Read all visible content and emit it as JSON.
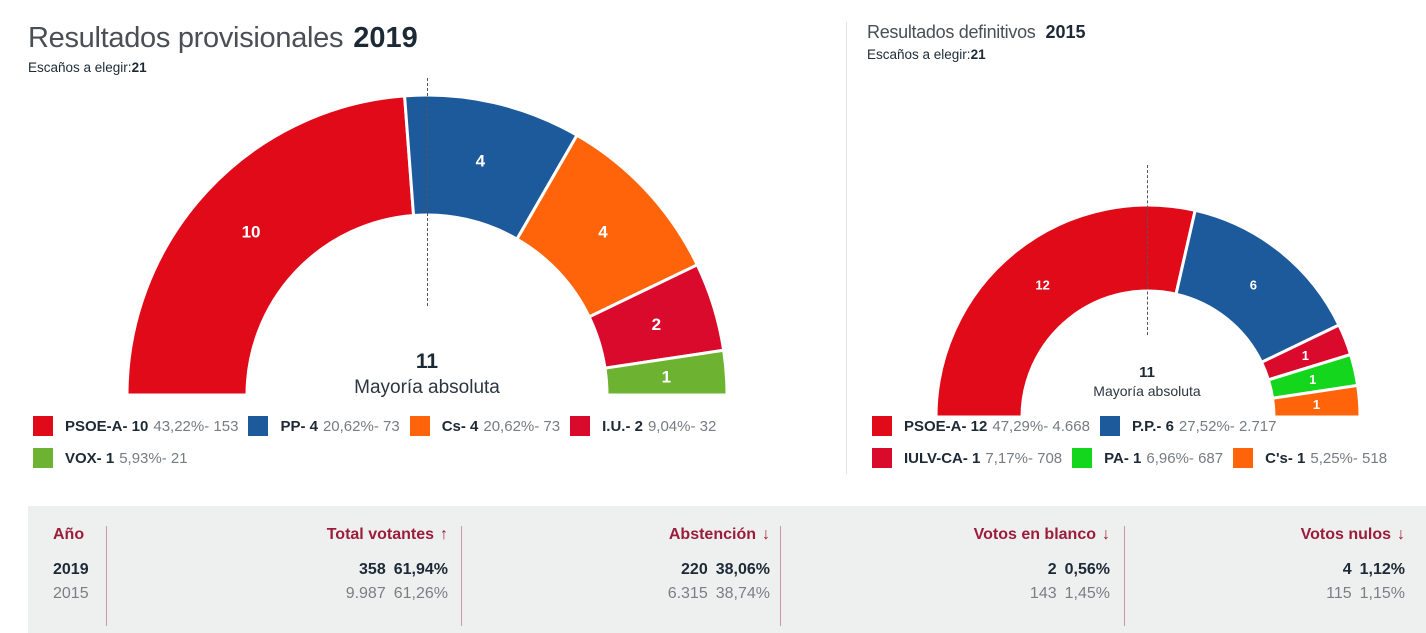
{
  "chart_data": [
    {
      "type": "hemicycle",
      "id": "2019",
      "title": "Resultados provisionales",
      "year": "2019",
      "seats_label": "Escaños a elegir:",
      "seats_total": "21",
      "majority_value": "11",
      "majority_label": "Mayoría absoluta",
      "series": [
        {
          "name": "PSOE-A",
          "seats": 10,
          "percent": "43,22%",
          "votes": "153",
          "color": "#e10a19"
        },
        {
          "name": "PP",
          "seats": 4,
          "percent": "20,62%",
          "votes": "73",
          "color": "#1d5a9c"
        },
        {
          "name": "Cs",
          "seats": 4,
          "percent": "20,62%",
          "votes": "73",
          "color": "#ff640a"
        },
        {
          "name": "I.U.",
          "seats": 2,
          "percent": "9,04%",
          "votes": "32",
          "color": "#d90a2c"
        },
        {
          "name": "VOX",
          "seats": 1,
          "percent": "5,93%",
          "votes": "21",
          "color": "#6db230"
        }
      ]
    },
    {
      "type": "hemicycle",
      "id": "2015",
      "title": "Resultados definitivos",
      "year": "2015",
      "seats_label": "Escaños a elegir:",
      "seats_total": "21",
      "majority_value": "11",
      "majority_label": "Mayoría absoluta",
      "series": [
        {
          "name": "PSOE-A",
          "seats": 12,
          "percent": "47,29%",
          "votes": "4.668",
          "color": "#e10a19"
        },
        {
          "name": "P.P.",
          "seats": 6,
          "percent": "27,52%",
          "votes": "2.717",
          "color": "#1d5a9c"
        },
        {
          "name": "IULV-CA",
          "seats": 1,
          "percent": "7,17%",
          "votes": "708",
          "color": "#d90a2c"
        },
        {
          "name": "PA",
          "seats": 1,
          "percent": "6,96%",
          "votes": "687",
          "color": "#13d61d"
        },
        {
          "name": "C's",
          "seats": 1,
          "percent": "5,25%",
          "votes": "518",
          "color": "#ff640a"
        }
      ]
    }
  ],
  "stats_table": {
    "headers": {
      "year": "Año",
      "total": "Total votantes",
      "abstention": "Abstención",
      "blank": "Votos en blanco",
      "null": "Votos nulos"
    },
    "arrows": {
      "total": "↑",
      "abstention": "↓",
      "blank": "↓",
      "null": "↓"
    },
    "rows": [
      {
        "year": "2019",
        "total": "358",
        "total_pct": "61,94%",
        "abstention": "220",
        "abstention_pct": "38,06%",
        "blank": "2",
        "blank_pct": "0,56%",
        "null": "4",
        "null_pct": "1,12%"
      },
      {
        "year": "2015",
        "total": "9.987",
        "total_pct": "61,26%",
        "abstention": "6.315",
        "abstention_pct": "38,74%",
        "blank": "143",
        "blank_pct": "1,45%",
        "null": "115",
        "null_pct": "1,15%"
      }
    ]
  }
}
